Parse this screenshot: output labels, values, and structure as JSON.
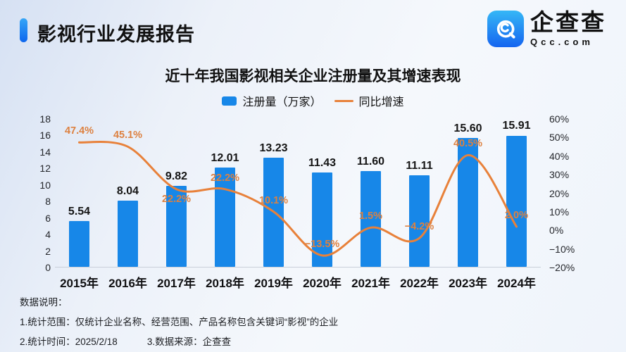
{
  "header": {
    "report_title": "影视行业发展报告"
  },
  "logo": {
    "brand_name": "企查查",
    "brand_domain": "Qcc.com"
  },
  "chart_data": {
    "type": "bar+line combo",
    "title": "近十年我国影视相关企业注册量及其增速表现",
    "categories": [
      "2015年",
      "2016年",
      "2017年",
      "2018年",
      "2019年",
      "2020年",
      "2021年",
      "2022年",
      "2023年",
      "2024年"
    ],
    "series": [
      {
        "name": "注册量（万家）",
        "type": "bar",
        "axis": "left",
        "values": [
          5.54,
          8.04,
          9.82,
          12.01,
          13.23,
          11.43,
          11.6,
          11.11,
          15.6,
          15.91
        ],
        "value_labels": [
          "5.54",
          "8.04",
          "9.82",
          "12.01",
          "13.23",
          "11.43",
          "11.60",
          "11.11",
          "15.60",
          "15.91"
        ],
        "color": "#1787e8"
      },
      {
        "name": "同比增速",
        "type": "line",
        "axis": "right",
        "values": [
          47.4,
          45.1,
          22.2,
          22.2,
          10.1,
          -13.5,
          1.5,
          -4.2,
          40.5,
          2.0
        ],
        "value_labels": [
          "47.4%",
          "45.1%",
          "22.2%",
          "22.2%",
          "10.1%",
          "−13.5%",
          "1.5%",
          "−4.2%",
          "40.5%",
          "2.0%"
        ],
        "label_position": [
          "above",
          "above",
          "below",
          "above",
          "above",
          "above",
          "above",
          "above",
          "above",
          "above"
        ],
        "color": "#e8813a",
        "label_color": "#dd8140",
        "smooth": true
      }
    ],
    "left_axis": {
      "min": 0,
      "max": 18,
      "tick_labels_top_to_bottom": [
        "18",
        "16",
        "14",
        "12",
        "10",
        "8",
        "6",
        "4",
        "2",
        "0"
      ]
    },
    "right_axis": {
      "min": -20,
      "max": 60,
      "tick_labels_top_to_bottom": [
        "60%",
        "50%",
        "40%",
        "30%",
        "20%",
        "10%",
        "0%",
        "−10%",
        "−20%"
      ]
    },
    "grid": false,
    "legend_position": "top"
  },
  "notes": {
    "heading": "数据说明：",
    "note1": "1.统计范围：仅统计企业名称、经营范围、产品名称包含关键词“影视”的企业",
    "note2": "2.统计时间：2025/2/18",
    "note3": "3.数据来源：企查查"
  }
}
